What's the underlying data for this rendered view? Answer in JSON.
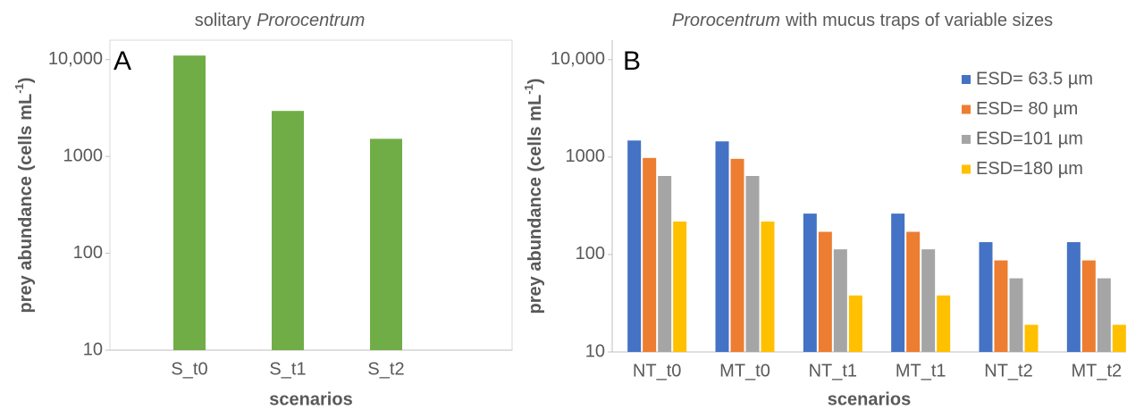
{
  "chart_data": [
    {
      "type": "bar",
      "panel_label": "A",
      "title_parts": [
        {
          "text": "solitary",
          "italic": false
        },
        {
          "text": "Prorocentrum",
          "italic": true
        }
      ],
      "ylabel_parts": [
        {
          "text": "prey abundance (cells mL",
          "sup": false
        },
        {
          "text": "-1",
          "sup": true
        },
        {
          "text": ")",
          "sup": false
        }
      ],
      "xlabel": "scenarios",
      "categories": [
        "S_t0",
        "S_t1",
        "S_t2"
      ],
      "series": [
        {
          "name": null,
          "color": "#70ad47",
          "values": [
            11000,
            2950,
            1520
          ]
        }
      ],
      "ylim": [
        10,
        15849
      ],
      "log_y": true,
      "yticks": [
        10,
        100,
        1000,
        {
          "value": 10000,
          "label": "10,000"
        }
      ],
      "legend": false
    },
    {
      "type": "bar",
      "panel_label": "B",
      "title_parts": [
        {
          "text": "Prorocentrum",
          "italic": true
        },
        {
          "text": "with mucus traps of variable sizes",
          "italic": false
        }
      ],
      "ylabel_parts": [
        {
          "text": "prey abundance (cells mL",
          "sup": false
        },
        {
          "text": "-1",
          "sup": true
        },
        {
          "text": ")",
          "sup": false
        }
      ],
      "xlabel": "scenarios",
      "categories": [
        "NT_t0",
        "MT_t0",
        "NT_t1",
        "MT_t1",
        "NT_t2",
        "MT_t2"
      ],
      "series": [
        {
          "name": "ESD= 63.5 µm",
          "color": "#4472c4",
          "values": [
            1480,
            1450,
            263,
            263,
            134,
            134
          ]
        },
        {
          "name": "ESD= 80 µm",
          "color": "#ed7d31",
          "values": [
            980,
            960,
            171,
            171,
            87,
            87
          ]
        },
        {
          "name": "ESD=101 µm",
          "color": "#a5a5a5",
          "values": [
            640,
            640,
            113,
            113,
            57,
            57
          ]
        },
        {
          "name": "ESD=180 µm",
          "color": "#ffc000",
          "values": [
            218,
            218,
            38,
            38,
            19,
            19
          ]
        }
      ],
      "ylim": [
        10,
        15849
      ],
      "log_y": true,
      "yticks": [
        10,
        100,
        1000,
        {
          "value": 10000,
          "label": "10,000"
        }
      ],
      "legend": "top-right"
    }
  ]
}
